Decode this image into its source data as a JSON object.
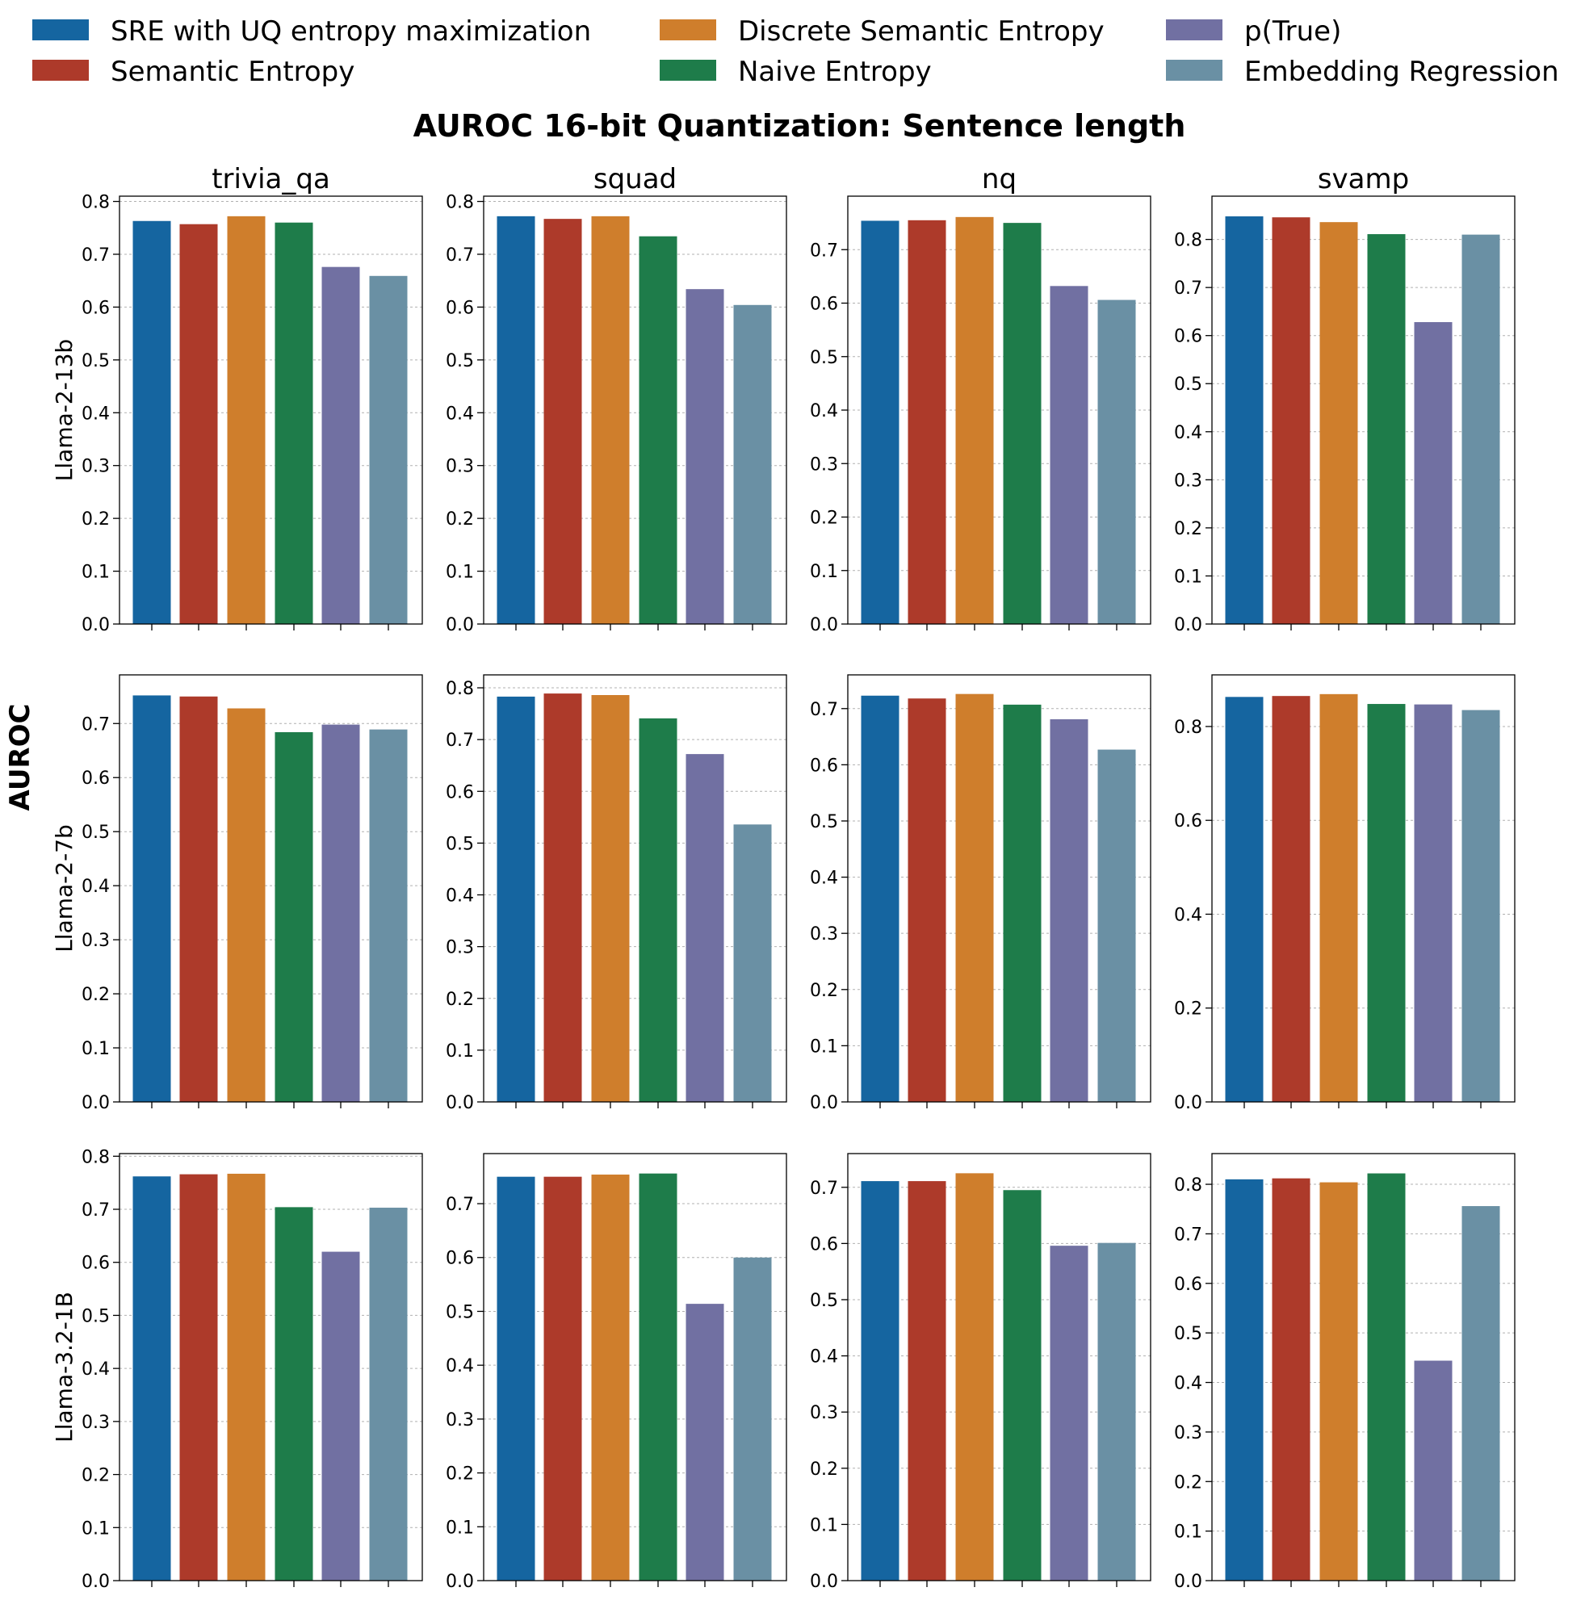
{
  "title": "AUROC 16-bit Quantization: Sentence length",
  "ylabel": "AUROC",
  "columns": [
    "trivia_qa",
    "squad",
    "nq",
    "svamp"
  ],
  "rows": [
    "Llama-2-13b",
    "Llama-2-7b",
    "Llama-3.2-1B"
  ],
  "legend": [
    {
      "name": "SRE with UQ entropy maximization",
      "color": "#1565a0"
    },
    {
      "name": "Semantic Entropy",
      "color": "#ad3a2a"
    },
    {
      "name": "Discrete Semantic Entropy",
      "color": "#cf7e2c"
    },
    {
      "name": "Naive Entropy",
      "color": "#1e7c4a"
    },
    {
      "name": "p(True)",
      "color": "#7170a2"
    },
    {
      "name": "Embedding Regression",
      "color": "#6a90a4"
    }
  ],
  "chart_data": [
    {
      "type": "bar",
      "model": "Llama-2-13b",
      "dataset": "trivia_qa",
      "values": [
        0.763,
        0.757,
        0.772,
        0.76,
        0.676,
        0.659
      ],
      "ylim": [
        0,
        0.81
      ],
      "yticks": [
        "0.0",
        "0.1",
        "0.2",
        "0.3",
        "0.4",
        "0.5",
        "0.6",
        "0.7",
        "0.8"
      ],
      "grid": true
    },
    {
      "type": "bar",
      "model": "Llama-2-13b",
      "dataset": "squad",
      "values": [
        0.772,
        0.767,
        0.772,
        0.734,
        0.634,
        0.604
      ],
      "ylim": [
        0,
        0.81
      ],
      "yticks": [
        "0.0",
        "0.1",
        "0.2",
        "0.3",
        "0.4",
        "0.5",
        "0.6",
        "0.7",
        "0.8"
      ],
      "grid": true
    },
    {
      "type": "bar",
      "model": "Llama-2-13b",
      "dataset": "nq",
      "values": [
        0.754,
        0.755,
        0.761,
        0.75,
        0.632,
        0.606
      ],
      "ylim": [
        0,
        0.8
      ],
      "yticks": [
        "0.0",
        "0.1",
        "0.2",
        "0.3",
        "0.4",
        "0.5",
        "0.6",
        "0.7"
      ],
      "grid": true
    },
    {
      "type": "bar",
      "model": "Llama-2-13b",
      "dataset": "svamp",
      "values": [
        0.848,
        0.846,
        0.836,
        0.811,
        0.628,
        0.81
      ],
      "ylim": [
        0,
        0.89
      ],
      "yticks": [
        "0.0",
        "0.1",
        "0.2",
        "0.3",
        "0.4",
        "0.5",
        "0.6",
        "0.7",
        "0.8"
      ],
      "grid": true
    },
    {
      "type": "bar",
      "model": "Llama-2-7b",
      "dataset": "trivia_qa",
      "values": [
        0.752,
        0.75,
        0.728,
        0.684,
        0.698,
        0.689
      ],
      "ylim": [
        0,
        0.79
      ],
      "yticks": [
        "0.0",
        "0.1",
        "0.2",
        "0.3",
        "0.4",
        "0.5",
        "0.6",
        "0.7"
      ],
      "grid": true
    },
    {
      "type": "bar",
      "model": "Llama-2-7b",
      "dataset": "squad",
      "values": [
        0.783,
        0.789,
        0.786,
        0.741,
        0.672,
        0.536
      ],
      "ylim": [
        0,
        0.825
      ],
      "yticks": [
        "0.0",
        "0.1",
        "0.2",
        "0.3",
        "0.4",
        "0.5",
        "0.6",
        "0.7",
        "0.8"
      ],
      "grid": true
    },
    {
      "type": "bar",
      "model": "Llama-2-7b",
      "dataset": "nq",
      "values": [
        0.723,
        0.718,
        0.726,
        0.707,
        0.681,
        0.627
      ],
      "ylim": [
        0,
        0.76
      ],
      "yticks": [
        "0.0",
        "0.1",
        "0.2",
        "0.3",
        "0.4",
        "0.5",
        "0.6",
        "0.7"
      ],
      "grid": true
    },
    {
      "type": "bar",
      "model": "Llama-2-7b",
      "dataset": "svamp",
      "values": [
        0.863,
        0.865,
        0.869,
        0.848,
        0.847,
        0.835
      ],
      "ylim": [
        0,
        0.91
      ],
      "yticks": [
        "0.0",
        "0.2",
        "0.4",
        "0.6",
        "0.8"
      ],
      "grid": true
    },
    {
      "type": "bar",
      "model": "Llama-3.2-1B",
      "dataset": "trivia_qa",
      "values": [
        0.762,
        0.766,
        0.767,
        0.704,
        0.62,
        0.703
      ],
      "ylim": [
        0,
        0.805
      ],
      "yticks": [
        "0.0",
        "0.1",
        "0.2",
        "0.3",
        "0.4",
        "0.5",
        "0.6",
        "0.7",
        "0.8"
      ],
      "grid": true
    },
    {
      "type": "bar",
      "model": "Llama-3.2-1B",
      "dataset": "squad",
      "values": [
        0.75,
        0.75,
        0.754,
        0.756,
        0.514,
        0.6
      ],
      "ylim": [
        0,
        0.793
      ],
      "yticks": [
        "0.0",
        "0.1",
        "0.2",
        "0.3",
        "0.4",
        "0.5",
        "0.6",
        "0.7"
      ],
      "grid": true
    },
    {
      "type": "bar",
      "model": "Llama-3.2-1B",
      "dataset": "nq",
      "values": [
        0.711,
        0.711,
        0.725,
        0.695,
        0.596,
        0.601
      ],
      "ylim": [
        0,
        0.76
      ],
      "yticks": [
        "0.0",
        "0.1",
        "0.2",
        "0.3",
        "0.4",
        "0.5",
        "0.6",
        "0.7"
      ],
      "grid": true
    },
    {
      "type": "bar",
      "model": "Llama-3.2-1B",
      "dataset": "svamp",
      "values": [
        0.81,
        0.812,
        0.804,
        0.822,
        0.444,
        0.756
      ],
      "ylim": [
        0,
        0.862
      ],
      "yticks": [
        "0.0",
        "0.1",
        "0.2",
        "0.3",
        "0.4",
        "0.5",
        "0.6",
        "0.7",
        "0.8"
      ],
      "grid": true
    }
  ]
}
